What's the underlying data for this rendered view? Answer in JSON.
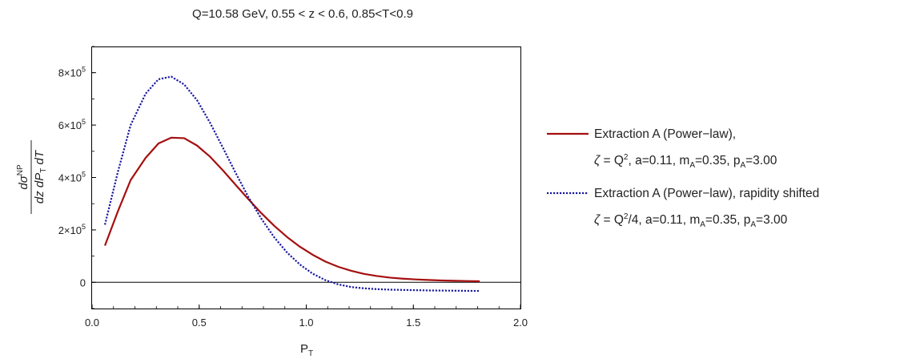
{
  "chart_data": {
    "type": "line",
    "title": "Q=10.58 GeV, 0.55 < z < 0.6, 0.85<T<0.9",
    "xlabel": {
      "main": "P",
      "sub": "T"
    },
    "ylabel": {
      "num_main": "dσ",
      "num_sup": "NP",
      "den_a": "dz dP",
      "den_sub": "T",
      "den_b": " dT"
    },
    "xlim": [
      0.0,
      2.0
    ],
    "ylim": [
      -100000,
      900000
    ],
    "xticks": [
      {
        "value": 0.0,
        "label": "0.0"
      },
      {
        "value": 0.5,
        "label": "0.5"
      },
      {
        "value": 1.0,
        "label": "1.0"
      },
      {
        "value": 1.5,
        "label": "1.5"
      },
      {
        "value": 2.0,
        "label": "2.0"
      }
    ],
    "yticks": [
      {
        "value": 0,
        "mant": "0",
        "exp": ""
      },
      {
        "value": 200000,
        "mant": "2×10",
        "exp": "5"
      },
      {
        "value": 400000,
        "mant": "4×10",
        "exp": "5"
      },
      {
        "value": 600000,
        "mant": "6×10",
        "exp": "5"
      },
      {
        "value": 800000,
        "mant": "8×10",
        "exp": "5"
      }
    ],
    "zero_line": true,
    "grid": false,
    "legend_position": "right",
    "series": [
      {
        "legend_line1": "Extraction A (Power−law),",
        "legend_line2": "ζ = Q², a=0.11, m_A=0.35, p_A=3.00",
        "color": "#a50f0f",
        "dash": "solid",
        "x": [
          0.06,
          0.12,
          0.18,
          0.25,
          0.31,
          0.37,
          0.43,
          0.49,
          0.55,
          0.61,
          0.67,
          0.73,
          0.79,
          0.85,
          0.91,
          0.97,
          1.03,
          1.09,
          1.15,
          1.21,
          1.27,
          1.33,
          1.39,
          1.45,
          1.51,
          1.57,
          1.63,
          1.69,
          1.75,
          1.81
        ],
        "y": [
          140000,
          270000,
          390000,
          475000,
          530000,
          552000,
          550000,
          522000,
          480000,
          428000,
          372000,
          317000,
          264000,
          216000,
          173000,
          136000,
          105000,
          79000,
          59000,
          44000,
          32000,
          24000,
          18000,
          14000,
          11000,
          9000,
          7000,
          6000,
          5000,
          4000
        ]
      },
      {
        "legend_line1": "Extraction A (Power−law), rapidity shifted",
        "legend_line2": "ζ = Q²/4,  a=0.11, m_A=0.35, p_A=3.00",
        "color": "#1a1aa0",
        "dash": "dotted",
        "x": [
          0.06,
          0.12,
          0.18,
          0.25,
          0.31,
          0.37,
          0.43,
          0.49,
          0.55,
          0.61,
          0.67,
          0.73,
          0.79,
          0.85,
          0.91,
          0.97,
          1.03,
          1.09,
          1.15,
          1.21,
          1.27,
          1.33,
          1.39,
          1.45,
          1.51,
          1.57,
          1.63,
          1.69,
          1.75,
          1.81
        ],
        "y": [
          220000,
          420000,
          600000,
          720000,
          775000,
          785000,
          755000,
          695000,
          610000,
          515000,
          418000,
          325000,
          243000,
          172000,
          114000,
          68000,
          33000,
          8000,
          -8000,
          -18000,
          -23000,
          -26000,
          -28000,
          -29000,
          -30000,
          -31000,
          -31500,
          -32000,
          -32500,
          -33000
        ]
      }
    ]
  }
}
